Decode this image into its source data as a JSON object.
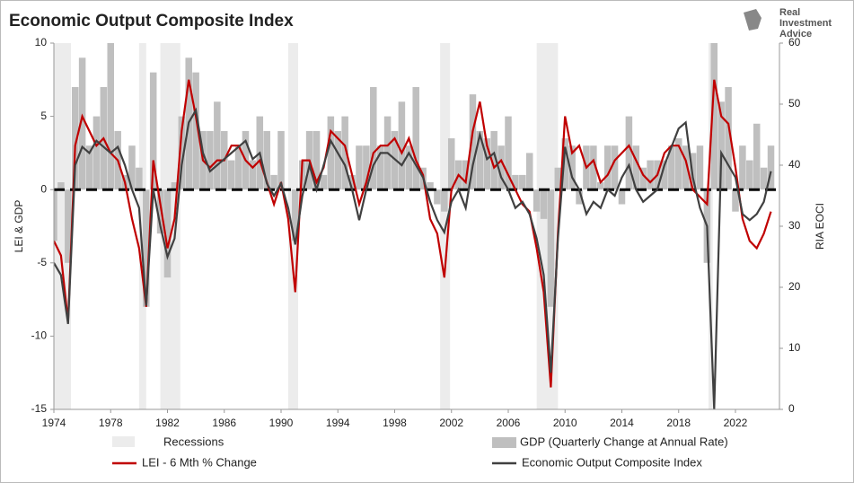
{
  "chart_data": {
    "type": "combo",
    "title": "Economic Output Composite Index",
    "logo_lines": [
      "Real",
      "Investment",
      "Advice"
    ],
    "y_label": "LEI & GDP",
    "y2_label": "RIA EOCI",
    "xlim": [
      1974,
      2025.1
    ],
    "xticks": [
      1974,
      1978,
      1982,
      1986,
      1990,
      1994,
      1998,
      2002,
      2006,
      2010,
      2014,
      2018,
      2022
    ],
    "ylim": [
      -15,
      10
    ],
    "yticks": [
      -15,
      -10,
      -5,
      0,
      5,
      10
    ],
    "y2lim": [
      0,
      60
    ],
    "y2ticks": [
      0,
      10,
      20,
      30,
      40,
      50,
      60
    ],
    "reference_line": 0,
    "recessions_label": "Recessions",
    "recession_color": "#ececec",
    "recessions": [
      [
        1973.9,
        1975.2
      ],
      [
        1980.0,
        1980.5
      ],
      [
        1981.5,
        1982.9
      ],
      [
        1990.5,
        1991.2
      ],
      [
        2001.2,
        2001.9
      ],
      [
        2008.0,
        2009.5
      ],
      [
        2020.1,
        2020.4
      ]
    ],
    "x": [
      1974.0,
      1974.5,
      1975.0,
      1975.5,
      1976.0,
      1976.5,
      1977.0,
      1977.5,
      1978.0,
      1978.5,
      1979.0,
      1979.5,
      1980.0,
      1980.5,
      1981.0,
      1981.5,
      1982.0,
      1982.5,
      1983.0,
      1983.5,
      1984.0,
      1984.5,
      1985.0,
      1985.5,
      1986.0,
      1986.5,
      1987.0,
      1987.5,
      1988.0,
      1988.5,
      1989.0,
      1989.5,
      1990.0,
      1990.5,
      1991.0,
      1991.5,
      1992.0,
      1992.5,
      1993.0,
      1993.5,
      1994.0,
      1994.5,
      1995.0,
      1995.5,
      1996.0,
      1996.5,
      1997.0,
      1997.5,
      1998.0,
      1998.5,
      1999.0,
      1999.5,
      2000.0,
      2000.5,
      2001.0,
      2001.5,
      2002.0,
      2002.5,
      2003.0,
      2003.5,
      2004.0,
      2004.5,
      2005.0,
      2005.5,
      2006.0,
      2006.5,
      2007.0,
      2007.5,
      2008.0,
      2008.5,
      2009.0,
      2009.5,
      2010.0,
      2010.5,
      2011.0,
      2011.5,
      2012.0,
      2012.5,
      2013.0,
      2013.5,
      2014.0,
      2014.5,
      2015.0,
      2015.5,
      2016.0,
      2016.5,
      2017.0,
      2017.5,
      2018.0,
      2018.5,
      2019.0,
      2019.5,
      2020.0,
      2020.5,
      2021.0,
      2021.5,
      2022.0,
      2022.5,
      2023.0,
      2023.5,
      2024.0,
      2024.5
    ],
    "series": [
      {
        "name": "GDP (Quarterly Change at Annual Rate)",
        "type": "bar",
        "color": "#bfbfbf",
        "values": [
          -3.5,
          0.5,
          -5,
          7,
          9,
          3,
          5,
          7,
          10,
          4,
          1,
          3,
          1.5,
          -8,
          8,
          -3,
          -6,
          0.5,
          5,
          9,
          8,
          4,
          4,
          6,
          4,
          2,
          3,
          4,
          2,
          5,
          4,
          1,
          4,
          0,
          -3.5,
          2,
          4,
          4,
          1,
          5,
          4,
          5,
          1,
          3,
          3,
          7,
          3,
          5,
          4,
          6,
          3,
          7,
          1.5,
          0.5,
          -1,
          -1.5,
          3.5,
          2,
          2,
          6.5,
          4,
          3.5,
          4,
          3,
          5,
          1,
          1,
          2.5,
          -1.5,
          -2,
          -8,
          1.5,
          3.5,
          3,
          -1,
          3,
          3,
          0.5,
          3,
          3,
          -1,
          5,
          3,
          1.5,
          2,
          2,
          2,
          3,
          3.5,
          3,
          2.5,
          3,
          -5,
          33.8,
          6,
          7,
          -1.5,
          3,
          2,
          4.5,
          1.5,
          3
        ]
      },
      {
        "name": "LEI - 6 Mth % Change",
        "type": "line",
        "color": "#c00000",
        "values": [
          -3.5,
          -4.5,
          -9,
          3,
          5,
          4,
          3,
          3.5,
          2.5,
          2,
          0.5,
          -2,
          -4,
          -8,
          2,
          -1,
          -4,
          -2,
          4,
          7.5,
          5,
          2,
          1.5,
          2,
          2,
          3,
          3,
          2,
          1.5,
          2,
          0.5,
          -1,
          0.5,
          -2,
          -7,
          2,
          2,
          0.5,
          1.5,
          4,
          3.5,
          3,
          1,
          -1,
          0.5,
          2.5,
          3,
          3,
          3.5,
          2.5,
          3.5,
          2,
          1,
          -2,
          -3,
          -6,
          0,
          1,
          0.5,
          4,
          6,
          3,
          1.5,
          2,
          1,
          0,
          -1,
          -1.5,
          -4,
          -7,
          -13.5,
          -3,
          5,
          2.5,
          3,
          1.5,
          2,
          0.5,
          1,
          2,
          2.5,
          3,
          2,
          1,
          0.5,
          1,
          2.5,
          3,
          3,
          2,
          0,
          -0.5,
          -1,
          7.5,
          5,
          4.5,
          1.5,
          -2,
          -3.5,
          -4,
          -3,
          -1.5
        ]
      },
      {
        "name": "Economic Output Composite Index",
        "type": "line",
        "axis": "y2",
        "color": "#404040",
        "values": [
          24,
          22,
          14,
          40,
          43,
          42,
          44,
          43,
          42,
          43,
          40,
          36,
          33,
          17,
          36,
          30,
          25,
          28,
          40,
          47,
          49,
          42,
          39,
          40,
          41,
          42,
          43,
          44,
          41,
          42,
          37,
          35,
          37,
          33,
          27,
          35,
          40,
          36,
          40,
          44,
          42,
          40,
          36,
          31,
          36,
          40,
          42,
          42,
          41,
          40,
          42,
          40,
          38,
          34,
          31,
          29,
          34,
          36,
          33,
          40,
          45,
          41,
          42,
          38,
          36,
          33,
          34,
          32,
          28,
          22,
          6,
          28,
          43,
          38,
          36,
          32,
          34,
          33,
          36,
          35,
          38,
          40,
          36,
          34,
          35,
          36,
          40,
          43,
          46,
          47,
          38,
          33,
          30,
          0,
          42,
          40,
          38,
          32,
          31,
          32,
          34,
          39
        ]
      }
    ]
  }
}
